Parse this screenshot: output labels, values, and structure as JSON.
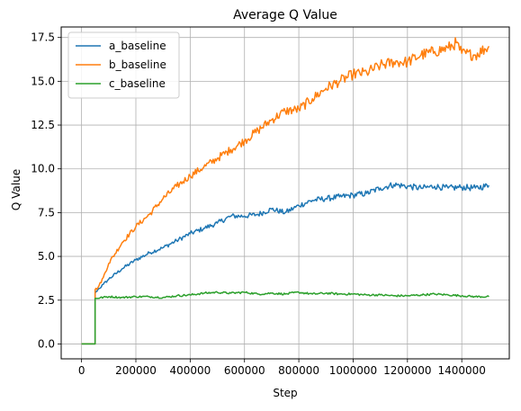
{
  "chart_data": {
    "type": "line",
    "title": "Average Q Value",
    "xlabel": "Step",
    "ylabel": "Q Value",
    "xlim": [
      -75000,
      1575000
    ],
    "ylim": [
      -0.85,
      18.1
    ],
    "grid": true,
    "legend_position": "top-left",
    "x_ticks": [
      0,
      200000,
      400000,
      600000,
      800000,
      1000000,
      1200000,
      1400000
    ],
    "x_tick_labels": [
      "0",
      "200000",
      "400000",
      "600000",
      "800000",
      "1000000",
      "1200000",
      "1400000"
    ],
    "y_ticks": [
      0.0,
      2.5,
      5.0,
      7.5,
      10.0,
      12.5,
      15.0,
      17.5
    ],
    "y_tick_labels": [
      "0.0",
      "2.5",
      "5.0",
      "7.5",
      "10.0",
      "12.5",
      "15.0",
      "17.5"
    ],
    "series": [
      {
        "name": "a_baseline",
        "color": "#1f77b4",
        "x": [
          0,
          50000,
          50000,
          60000,
          80000,
          100000,
          150000,
          200000,
          250000,
          300000,
          350000,
          400000,
          450000,
          500000,
          550000,
          600000,
          650000,
          700000,
          750000,
          800000,
          850000,
          900000,
          950000,
          1000000,
          1050000,
          1100000,
          1150000,
          1200000,
          1250000,
          1300000,
          1350000,
          1400000,
          1450000,
          1500000
        ],
        "y": [
          0.0,
          0.0,
          2.9,
          3.1,
          3.4,
          3.7,
          4.3,
          4.8,
          5.2,
          5.5,
          5.9,
          6.3,
          6.6,
          6.9,
          7.3,
          7.3,
          7.4,
          7.7,
          7.5,
          7.9,
          8.2,
          8.3,
          8.4,
          8.5,
          8.6,
          8.9,
          9.1,
          9.0,
          8.9,
          9.0,
          8.9,
          8.95,
          8.9,
          9.05
        ]
      },
      {
        "name": "b_baseline",
        "color": "#ff7f0e",
        "x": [
          0,
          50000,
          50000,
          60000,
          80000,
          100000,
          150000,
          200000,
          250000,
          300000,
          350000,
          400000,
          450000,
          500000,
          550000,
          600000,
          650000,
          700000,
          750000,
          800000,
          850000,
          900000,
          950000,
          1000000,
          1050000,
          1100000,
          1150000,
          1200000,
          1250000,
          1300000,
          1350000,
          1380000,
          1400000,
          1450000,
          1500000
        ],
        "y": [
          0.0,
          0.0,
          3.1,
          3.2,
          3.8,
          4.6,
          5.8,
          6.7,
          7.4,
          8.3,
          9.0,
          9.6,
          10.1,
          10.6,
          11.1,
          11.6,
          12.2,
          12.8,
          13.3,
          13.4,
          14.0,
          14.6,
          15.0,
          15.4,
          15.5,
          15.9,
          16.1,
          16.1,
          16.5,
          16.7,
          16.9,
          17.2,
          16.6,
          16.5,
          17.0
        ]
      },
      {
        "name": "c_baseline",
        "color": "#2ca02c",
        "x": [
          0,
          50000,
          50000,
          100000,
          150000,
          200000,
          250000,
          300000,
          350000,
          400000,
          450000,
          500000,
          550000,
          600000,
          650000,
          700000,
          750000,
          800000,
          850000,
          900000,
          950000,
          1000000,
          1050000,
          1100000,
          1150000,
          1200000,
          1250000,
          1300000,
          1350000,
          1400000,
          1450000,
          1500000
        ],
        "y": [
          0.0,
          0.0,
          2.6,
          2.7,
          2.65,
          2.7,
          2.7,
          2.65,
          2.75,
          2.8,
          2.9,
          2.95,
          2.9,
          2.95,
          2.85,
          2.9,
          2.85,
          2.95,
          2.85,
          2.9,
          2.85,
          2.85,
          2.8,
          2.8,
          2.75,
          2.75,
          2.8,
          2.85,
          2.8,
          2.75,
          2.7,
          2.7
        ]
      }
    ]
  }
}
